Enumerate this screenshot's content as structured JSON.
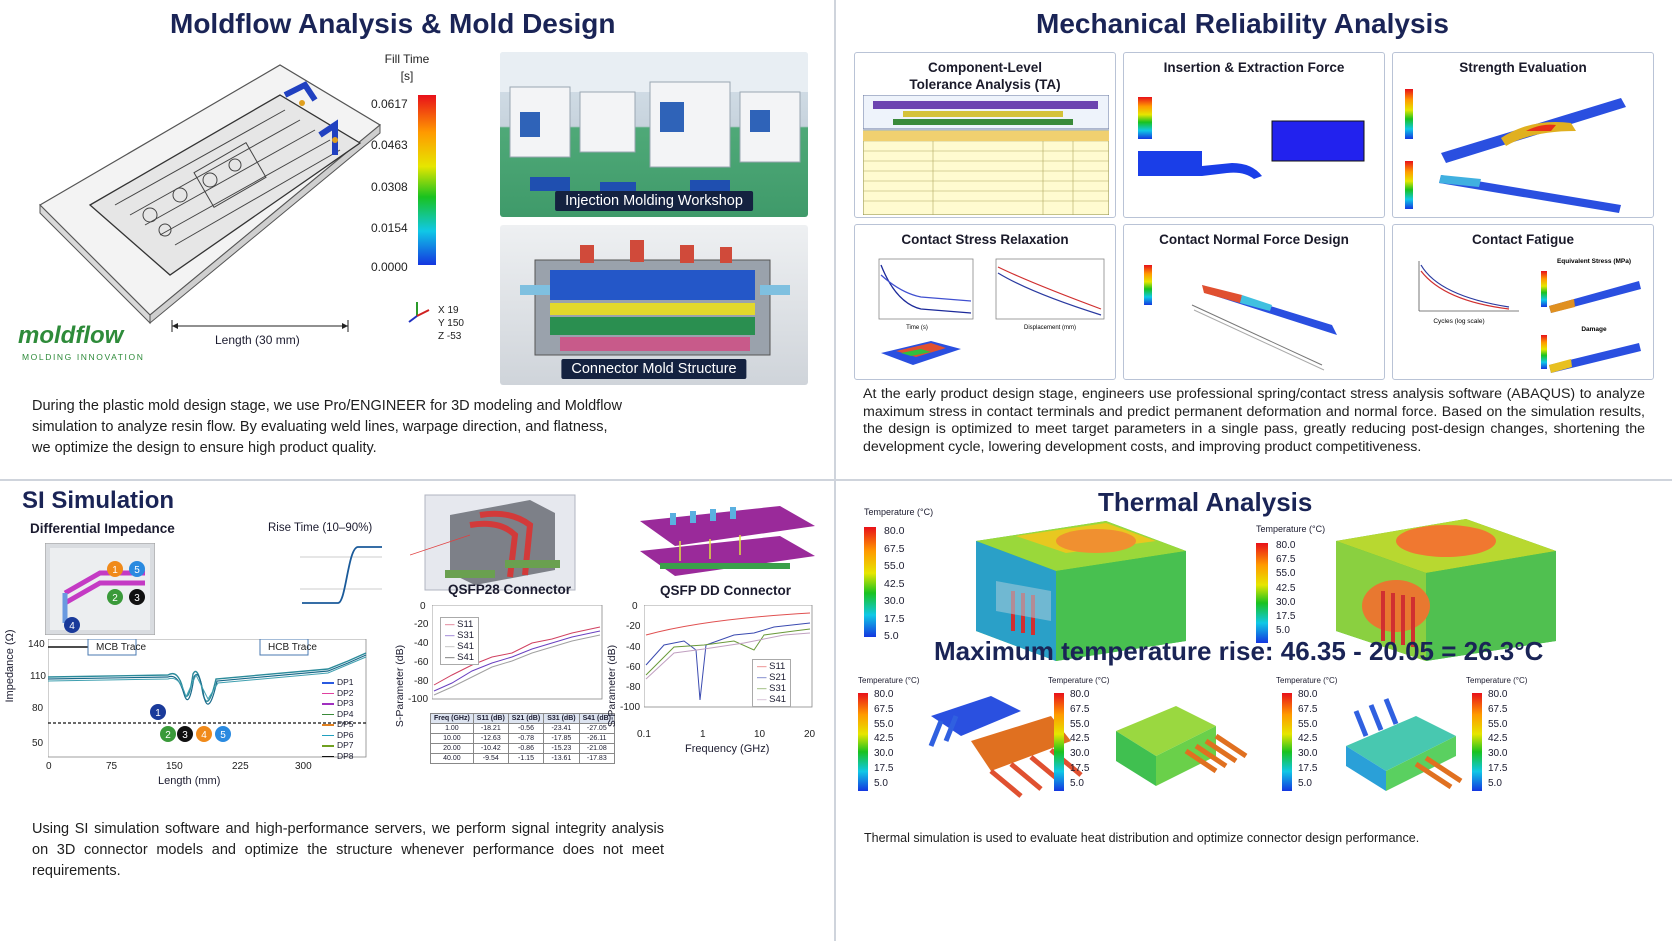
{
  "moldflow": {
    "title": "Moldflow Analysis & Mold Design",
    "legend_title_1": "Fill Time",
    "legend_title_2": "[s]",
    "legend_values": [
      "0.0617",
      "0.0463",
      "0.0308",
      "0.0154",
      "0.0000"
    ],
    "axes_readout": [
      "X  19",
      "Y  150",
      "Z  -53"
    ],
    "length_label": "Length (30 mm)",
    "logo_text": "moldflow",
    "logo_tagline": "MOLDING INNOVATION",
    "photo1_caption": "Injection Molding Workshop",
    "photo2_caption": "Connector Mold Structure",
    "description": "During the plastic mold design stage, we use Pro/ENGINEER for 3D modeling and Moldflow simulation to analyze resin flow. By evaluating weld lines, warpage direction, and flatness, we optimize the design to ensure high product quality."
  },
  "mechanical": {
    "title": "Mechanical Reliability Analysis",
    "panels": [
      {
        "title": "Component-Level\nTolerance Analysis (TA)"
      },
      {
        "title": "Insertion & Extraction Force"
      },
      {
        "title": "Strength Evaluation"
      },
      {
        "title": "Contact Stress Relaxation"
      },
      {
        "title": "Contact Normal Force Design"
      },
      {
        "title": "Contact Fatigue"
      }
    ],
    "fatigue_labels": {
      "equiv_stress": "Equivalent Stress (MPa)",
      "damage": "Damage",
      "xaxis": "Cycles (log scale)"
    },
    "relax_labels": {
      "time": "Time (s)",
      "disp": "Displacement (mm)"
    },
    "description": "At the early product design stage, engineers use professional spring/contact stress analysis software (ABAQUS) to analyze maximum stress in contact terminals and predict permanent deformation and normal force. Based on the simulation results, the design is optimized to meet target parameters in a single pass, greatly reducing post-design changes, shortening the development cycle, lowering development costs, and improving product competitiveness."
  },
  "si": {
    "title": "SI Simulation",
    "diff_impedance": "Differential Impedance",
    "rise_time": "Rise Time (10–90%)",
    "qsfp28": "QSFP28 Connector",
    "qsfpdd": "QSFP DD Connector",
    "mcb_trace": "MCB Trace",
    "hcb_trace": "HCB Trace",
    "impedance_ylabel": "Impedance (Ω)",
    "impedance_xlabel": "Length (mm)",
    "impedance_yticks": [
      "140",
      "110",
      "80",
      "50"
    ],
    "impedance_xticks": [
      "0",
      "75",
      "150",
      "225",
      "300"
    ],
    "impedance_legend": [
      "DP1",
      "DP2",
      "DP3",
      "DP4",
      "DP5",
      "DP6",
      "DP7",
      "DP8"
    ],
    "sparam_ylabel": "S-Parameter (dB)",
    "sparam1_yticks": [
      "0",
      "-20",
      "-40",
      "-60",
      "-80",
      "-100"
    ],
    "sparam1_legend": [
      "S11",
      "S31",
      "S41",
      "S41"
    ],
    "sparam_table": {
      "headers": [
        "Freq (GHz)",
        "S11 (dB)",
        "S21 (dB)",
        "S31 (dB)",
        "S41 (dB)"
      ],
      "rows": [
        [
          "1.00",
          "-18.21",
          "-0.56",
          "-23.41",
          "-27.05"
        ],
        [
          "10.00",
          "-12.63",
          "-0.78",
          "-17.85",
          "-26.11"
        ],
        [
          "20.00",
          "-10.42",
          "-0.86",
          "-15.23",
          "-21.08"
        ],
        [
          "40.00",
          "-9.54",
          "-1.15",
          "-13.61",
          "-17.83"
        ]
      ]
    },
    "sparam2_yticks": [
      "0",
      "-20",
      "-40",
      "-60",
      "-80",
      "-100"
    ],
    "sparam2_xticks": [
      "0.1",
      "1",
      "10",
      "20"
    ],
    "sparam2_xlabel": "Frequency (GHz)",
    "sparam2_legend": [
      "S11",
      "S21",
      "S31",
      "S41"
    ],
    "description": "Using SI simulation software and high-performance servers, we perform signal integrity analysis on 3D connector models and optimize the structure whenever performance does not meet requirements."
  },
  "thermal": {
    "title": "Thermal Analysis",
    "legend_title": "Temperature (°C)",
    "legend_values": [
      "80.0",
      "67.5",
      "55.0",
      "42.5",
      "30.0",
      "17.5",
      "5.0"
    ],
    "headline": "Maximum temperature rise: 46.35 - 20.05 = 26.3°C",
    "description": "Thermal simulation is used to evaluate heat distribution and optimize connector design performance."
  },
  "colors": {
    "title_navy": "#1a2456",
    "caption_bg": "#142240",
    "panel_border": "#b9c3d6",
    "logo_green": "#2e8b3a"
  }
}
